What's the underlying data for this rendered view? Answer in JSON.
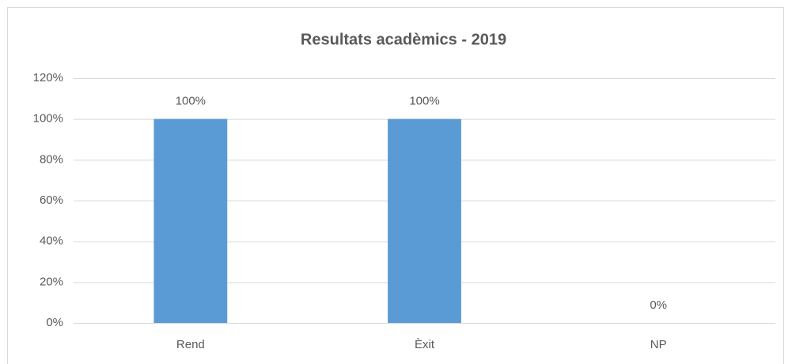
{
  "chart_data": {
    "type": "bar",
    "title": "Resultats acadèmics - 2019",
    "categories": [
      "Rend",
      "Èxit",
      "NP"
    ],
    "values": [
      100,
      100,
      0
    ],
    "value_labels": [
      "100%",
      "100%",
      "0%"
    ],
    "color": "#5b9bd5",
    "ylim": [
      0,
      120
    ],
    "yticks": [
      {
        "value": 0,
        "label": "0%"
      },
      {
        "value": 20,
        "label": "20%"
      },
      {
        "value": 40,
        "label": "40%"
      },
      {
        "value": 60,
        "label": "60%"
      },
      {
        "value": 80,
        "label": "80%"
      },
      {
        "value": 100,
        "label": "100%"
      },
      {
        "value": 120,
        "label": "120%"
      }
    ],
    "grid": true
  }
}
